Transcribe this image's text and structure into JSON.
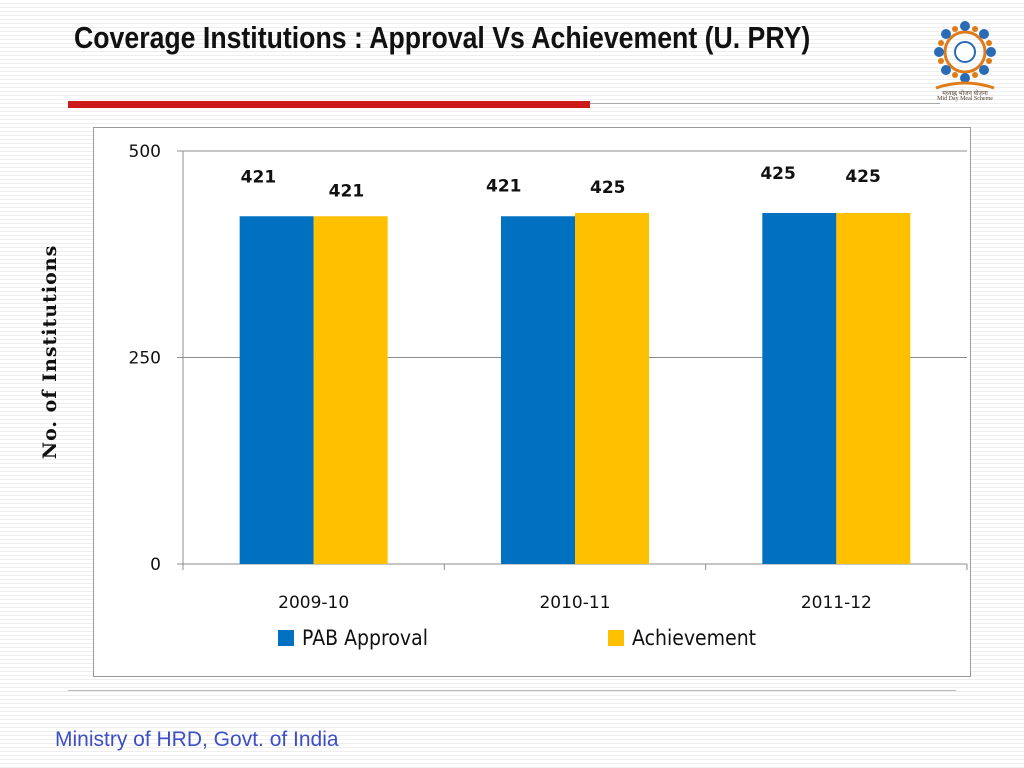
{
  "slide": {
    "title": "Coverage Institutions : Approval Vs Achievement (U. PRY)",
    "footer": "Ministry of HRD, Govt. of India",
    "logo_text_line1": "मध्याह्न भोजन योजना",
    "logo_text_line2": "Mid Day Meal Scheme"
  },
  "colors": {
    "title_rule": "#cc1a1a",
    "footer_text": "#3d4fc6"
  },
  "chart_data": {
    "type": "bar",
    "title": "",
    "xlabel": "",
    "ylabel": "No. of Institutions",
    "categories": [
      "2009-10",
      "2010-11",
      "2011-12"
    ],
    "series": [
      {
        "name": "PAB Approval",
        "values": [
          421,
          421,
          425
        ],
        "color": "#0070c0"
      },
      {
        "name": "Achievement",
        "values": [
          421,
          425,
          425
        ],
        "color": "#ffc000"
      }
    ],
    "ylim": [
      0,
      500
    ],
    "yticks": [
      0,
      250,
      500
    ],
    "grid": true,
    "legend": "bottom",
    "data_labels": true
  }
}
